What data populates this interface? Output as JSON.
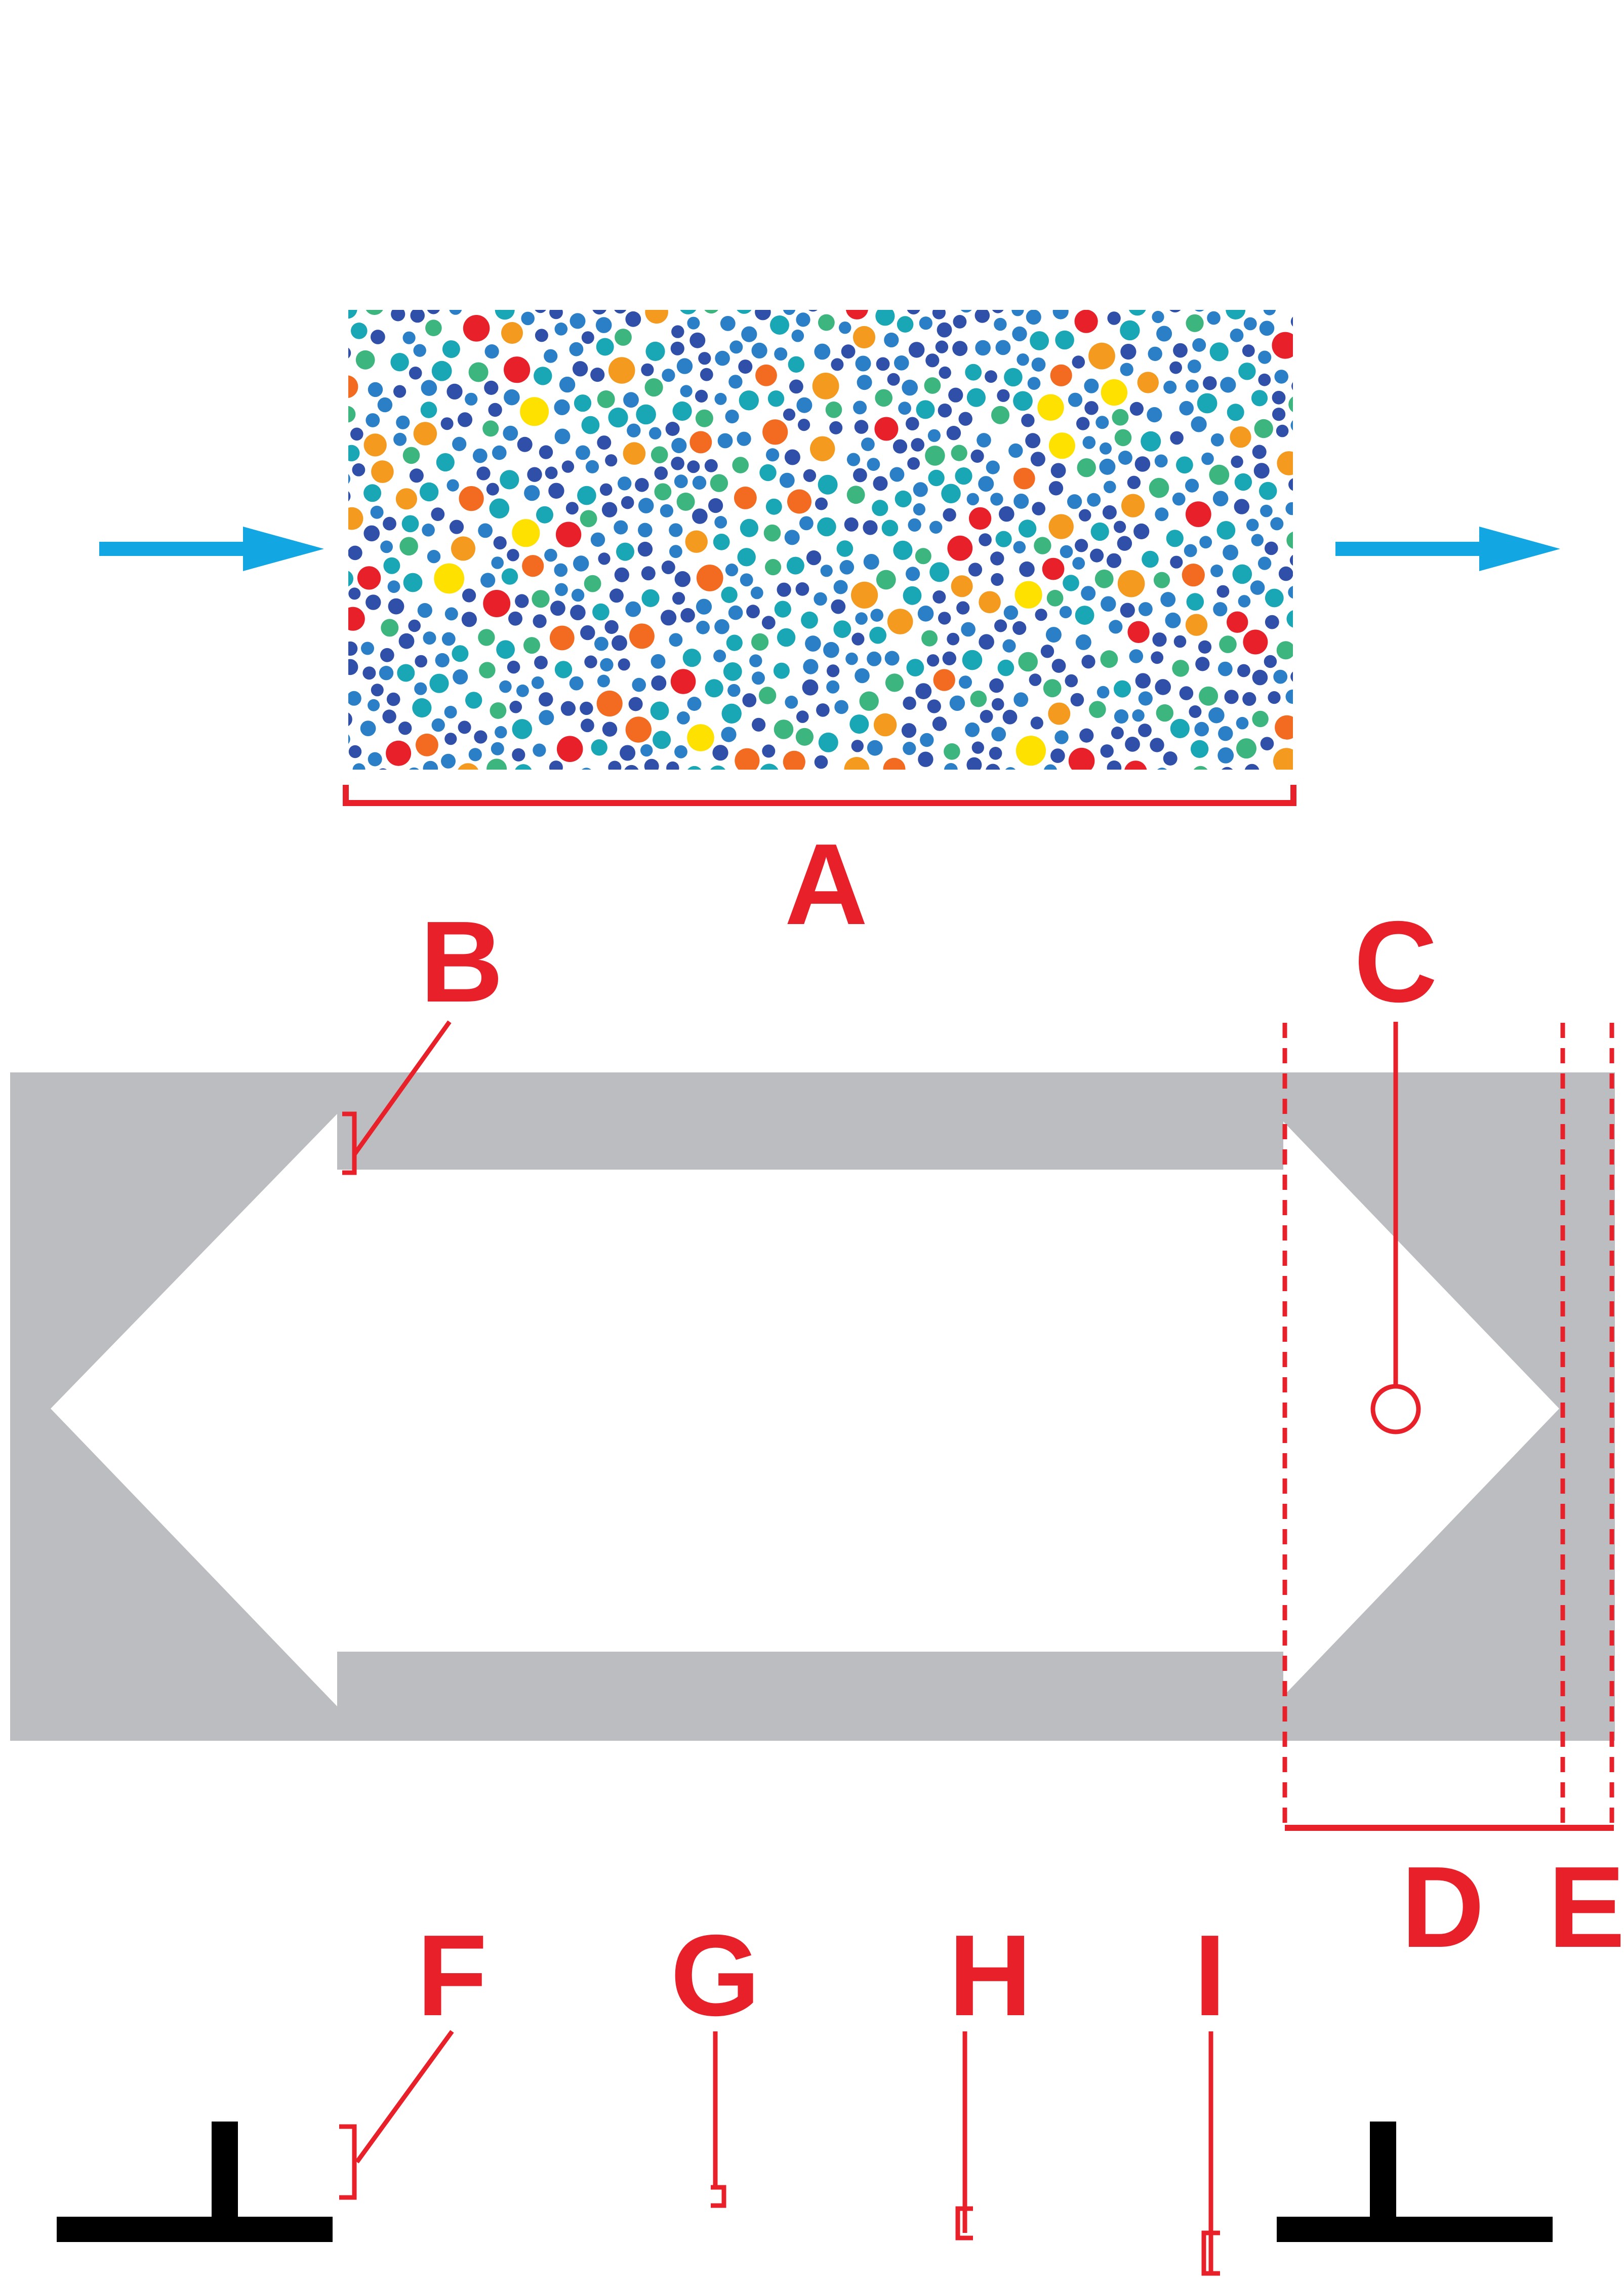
{
  "labels": {
    "a": "A",
    "b": "B",
    "c": "C",
    "d": "D",
    "e": "E",
    "f": "F",
    "g": "G",
    "h": "H",
    "i": "I"
  },
  "colors": {
    "annotation": "#e8202a",
    "flow_arrow": "#12a6e3",
    "channel": "#bcbdc0",
    "tee": "#000000",
    "particles": [
      "#2f4fa8",
      "#2a7fc6",
      "#1aa7b5",
      "#3db57e",
      "#f39a1f",
      "#f26b21",
      "#e8202a",
      "#ffe100"
    ]
  },
  "icons": {
    "inlet": "flow-arrow-right-icon",
    "outlet": "flow-arrow-right-icon",
    "particles": "particle-dot-pattern",
    "tee_left": "tee-profile-icon",
    "tee_right": "tee-profile-icon"
  }
}
